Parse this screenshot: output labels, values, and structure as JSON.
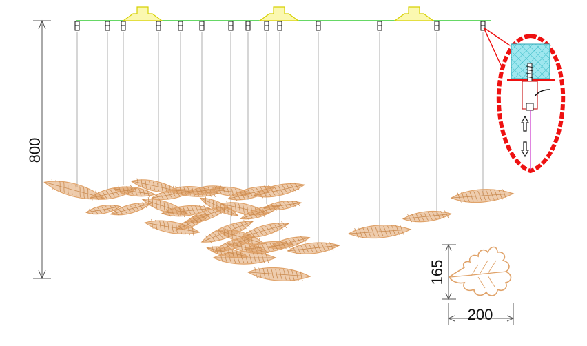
{
  "dimensions": {
    "height_label": "800",
    "leaf_height_label": "165",
    "leaf_width_label": "200"
  },
  "colors": {
    "rail": "#33cc33",
    "canopy": "#f2ee3a",
    "wire": "#9a9a9a",
    "leaf": "#e0a36a",
    "leaf_dark": "#c98a4f",
    "detail_outline": "#ee1111",
    "detail_fill": "#7fe3ea",
    "detail_rod": "#cc33cc",
    "dim_line": "#555555"
  },
  "icons": {
    "detail": "callout-magnifier-icon",
    "leaf": "leaf-outline-icon",
    "arrows": "arrow-up-down-icon"
  }
}
